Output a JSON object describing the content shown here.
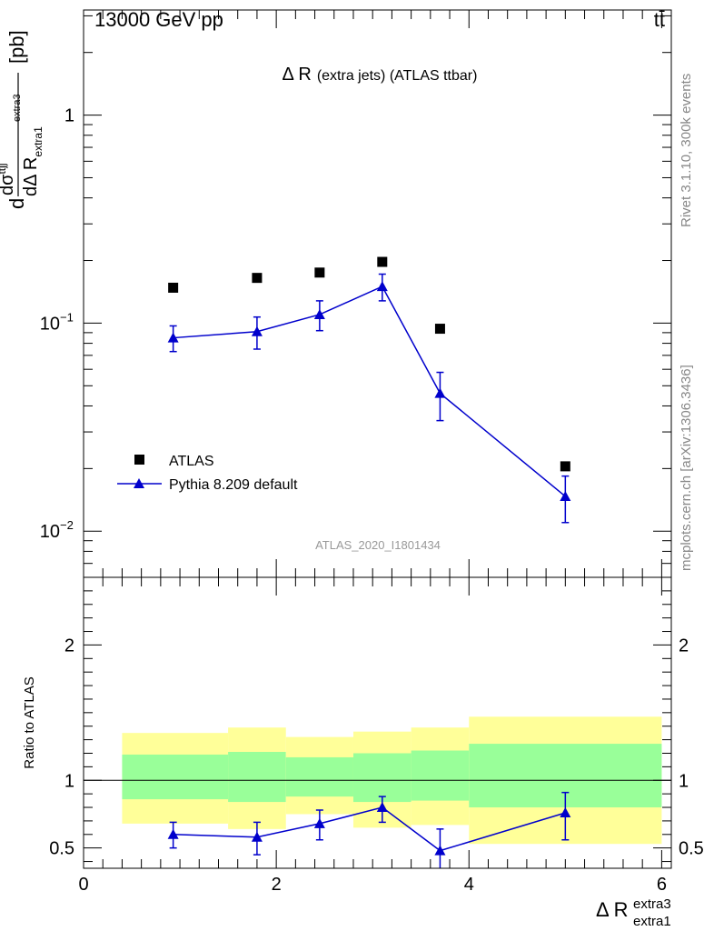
{
  "header": {
    "energy_label": "13000 GeV pp",
    "process_label": "tt̄"
  },
  "side_labels": {
    "rivet": "Rivet 3.1.10,  300k events",
    "mcplots": "mcplots.cern.ch [arXiv:1306.3436]"
  },
  "watermark": "ATLAS_2020_I1801434",
  "colors": {
    "data": "#000000",
    "mc": "#0000cc",
    "band_inner": "#99ff99",
    "band_outer": "#ffff99",
    "watermark": "#999999",
    "side": "#888888"
  },
  "chart_data": [
    {
      "type": "scatter",
      "title": "Δ R (extra jets) (ATLAS ttbar)",
      "title_main": "Δ R",
      "title_rest": "(extra jets) (ATLAS ttbar)",
      "yscale": "log",
      "ylabel": "d dσ^ttjj / dΔ R_extra1^extra3 [pb]",
      "ylabel_d": "d",
      "ylabel_num": "dσ",
      "ylabel_num_sup": "ttjj",
      "ylabel_den": "dΔ R",
      "ylabel_den_sub": "extra1",
      "ylabel_den_sup": "extra3",
      "ylabel_unit": "[pb]",
      "xlim": [
        0,
        6.1
      ],
      "ylim": [
        0.006,
        3.2
      ],
      "yticks": [
        {
          "value": 1,
          "label": "1"
        },
        {
          "value": 0.1,
          "base": "10",
          "exp": "−1"
        },
        {
          "value": 0.01,
          "base": "10",
          "exp": "−2"
        }
      ],
      "legend_position": "bottom-left",
      "series": [
        {
          "name": "ATLAS",
          "marker": "square",
          "x": [
            0.93,
            1.8,
            2.45,
            3.1,
            3.7,
            5.0
          ],
          "y": [
            0.148,
            0.165,
            0.175,
            0.197,
            0.094,
            0.0205
          ]
        },
        {
          "name": "Pythia 8.209 default",
          "marker": "triangle",
          "line": true,
          "x": [
            0.93,
            1.8,
            2.45,
            3.1,
            3.7,
            5.0
          ],
          "y": [
            0.085,
            0.091,
            0.11,
            0.15,
            0.046,
            0.0147
          ],
          "yerr_low": [
            0.012,
            0.016,
            0.018,
            0.022,
            0.012,
            0.0037
          ],
          "yerr_high": [
            0.012,
            0.016,
            0.018,
            0.022,
            0.012,
            0.0037
          ]
        }
      ]
    },
    {
      "type": "scatter",
      "ylabel": "Ratio to ATLAS",
      "xlabel": "Δ R_extra1^extra3",
      "xlabel_main": "Δ R",
      "xlabel_sup": "extra3",
      "xlabel_sub": "extra1",
      "xlim": [
        0,
        6.1
      ],
      "ylim": [
        0.35,
        2.5
      ],
      "xticks": [
        "0",
        "2",
        "4",
        "6"
      ],
      "yticks": [
        "0.5",
        "1",
        "2"
      ],
      "bands": {
        "edges": [
          0.4,
          1.5,
          2.1,
          2.8,
          3.4,
          4.0,
          6.0
        ],
        "inner_low": [
          0.86,
          0.84,
          0.88,
          0.84,
          0.85,
          0.8
        ],
        "inner_high": [
          1.19,
          1.21,
          1.17,
          1.2,
          1.22,
          1.27
        ],
        "outer_low": [
          0.68,
          0.64,
          0.75,
          0.65,
          0.67,
          0.53
        ],
        "outer_high": [
          1.35,
          1.39,
          1.32,
          1.36,
          1.39,
          1.47
        ]
      },
      "series": [
        {
          "name": "Pythia 8.209 default",
          "x": [
            0.93,
            1.8,
            2.45,
            3.1,
            3.7,
            5.0
          ],
          "y": [
            0.6,
            0.58,
            0.68,
            0.8,
            0.48,
            0.76
          ],
          "yerr_low": [
            0.1,
            0.13,
            0.12,
            0.11,
            0.14,
            0.2
          ],
          "yerr_high": [
            0.09,
            0.11,
            0.1,
            0.08,
            0.16,
            0.15
          ]
        }
      ]
    }
  ]
}
